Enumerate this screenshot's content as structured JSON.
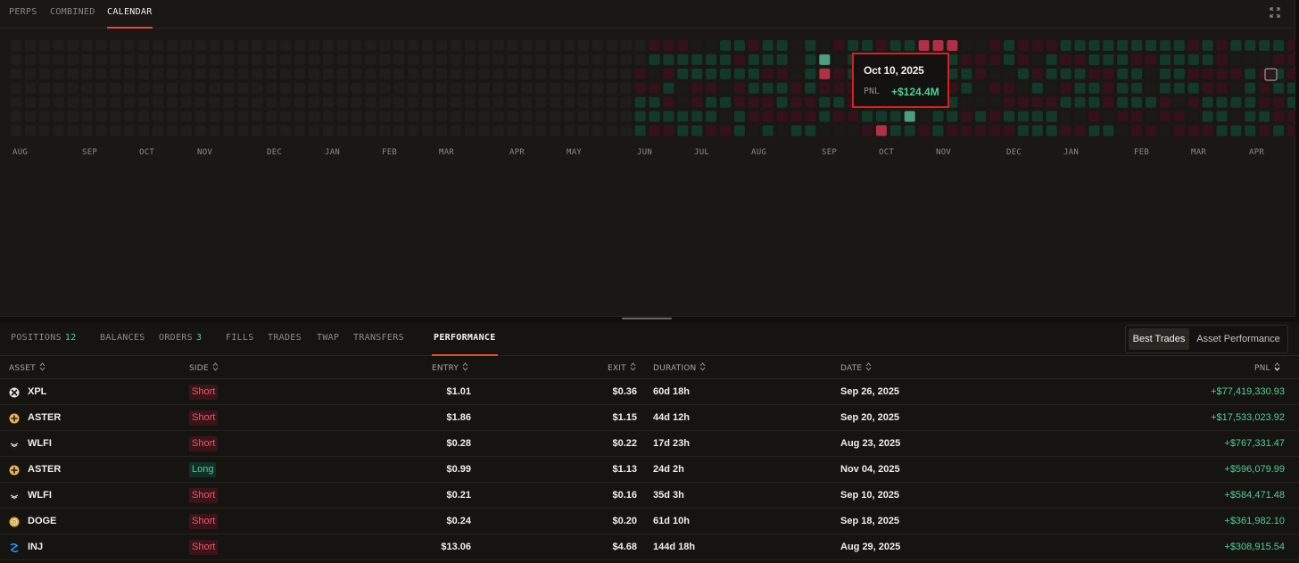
{
  "top_tabs": [
    {
      "label": "PERPS",
      "active": false
    },
    {
      "label": "COMBINED",
      "active": false
    },
    {
      "label": "CALENDAR",
      "active": true
    }
  ],
  "calendar": {
    "months": [
      "AUG",
      "SEP",
      "OCT",
      "NOV",
      "DEC",
      "JAN",
      "FEB",
      "MAR",
      "APR",
      "MAY",
      "JUN",
      "JUL",
      "AUG",
      "SEP",
      "OCT",
      "NOV",
      "DEC",
      "JAN",
      "FEB",
      "MAR",
      "APR"
    ],
    "colors": {
      "empty": "#201e1b",
      "neutral": "#1b1a17",
      "gain": "#13392b",
      "loss": "#35121a",
      "strong_gain": "#4ca07e",
      "strong_loss": "#b03046"
    },
    "tooltip": {
      "date": "Oct 10, 2025",
      "label": "PNL",
      "value": "+$124.4M"
    }
  },
  "bottom_tabs": [
    {
      "label": "POSITIONS",
      "count": "12",
      "active": false
    },
    {
      "label": "BALANCES",
      "count": "",
      "active": false
    },
    {
      "label": "ORDERS",
      "count": "3",
      "active": false
    },
    {
      "label": "FILLS",
      "count": "",
      "active": false
    },
    {
      "label": "TRADES",
      "count": "",
      "active": false
    },
    {
      "label": "TWAP",
      "count": "",
      "active": false
    },
    {
      "label": "TRANSFERS",
      "count": "",
      "active": false
    },
    {
      "label": "PERFORMANCE",
      "count": "",
      "active": true
    }
  ],
  "view_toggle": {
    "selected": "Best Trades",
    "other": "Asset Performance"
  },
  "table": {
    "headers": {
      "asset": "ASSET",
      "side": "SIDE",
      "entry": "ENTRY",
      "exit": "EXIT",
      "duration": "DURATION",
      "date": "DATE",
      "pnl": "PNL"
    },
    "rows": [
      {
        "icon": "xpl-icon",
        "asset": "XPL",
        "side": "Short",
        "entry": "$1.01",
        "exit": "$0.36",
        "duration": "60d 18h",
        "date": "Sep 26, 2025",
        "pnl": "+$77,419,330.93"
      },
      {
        "icon": "aster-icon",
        "asset": "ASTER",
        "side": "Short",
        "entry": "$1.86",
        "exit": "$1.15",
        "duration": "44d 12h",
        "date": "Sep 20, 2025",
        "pnl": "+$17,533,023.92"
      },
      {
        "icon": "wlfi-icon",
        "asset": "WLFI",
        "side": "Short",
        "entry": "$0.28",
        "exit": "$0.22",
        "duration": "17d 23h",
        "date": "Aug 23, 2025",
        "pnl": "+$767,331.47"
      },
      {
        "icon": "aster-icon",
        "asset": "ASTER",
        "side": "Long",
        "entry": "$0.99",
        "exit": "$1.13",
        "duration": "24d 2h",
        "date": "Nov 04, 2025",
        "pnl": "+$596,079.99"
      },
      {
        "icon": "wlfi-icon",
        "asset": "WLFI",
        "side": "Short",
        "entry": "$0.21",
        "exit": "$0.16",
        "duration": "35d 3h",
        "date": "Sep 10, 2025",
        "pnl": "+$584,471.48"
      },
      {
        "icon": "doge-icon",
        "asset": "DOGE",
        "side": "Short",
        "entry": "$0.24",
        "exit": "$0.20",
        "duration": "61d 10h",
        "date": "Sep 18, 2025",
        "pnl": "+$361,982.10"
      },
      {
        "icon": "inj-icon",
        "asset": "INJ",
        "side": "Short",
        "entry": "$13.06",
        "exit": "$4.68",
        "duration": "144d 18h",
        "date": "Aug 29, 2025",
        "pnl": "+$308,915.54"
      }
    ]
  }
}
